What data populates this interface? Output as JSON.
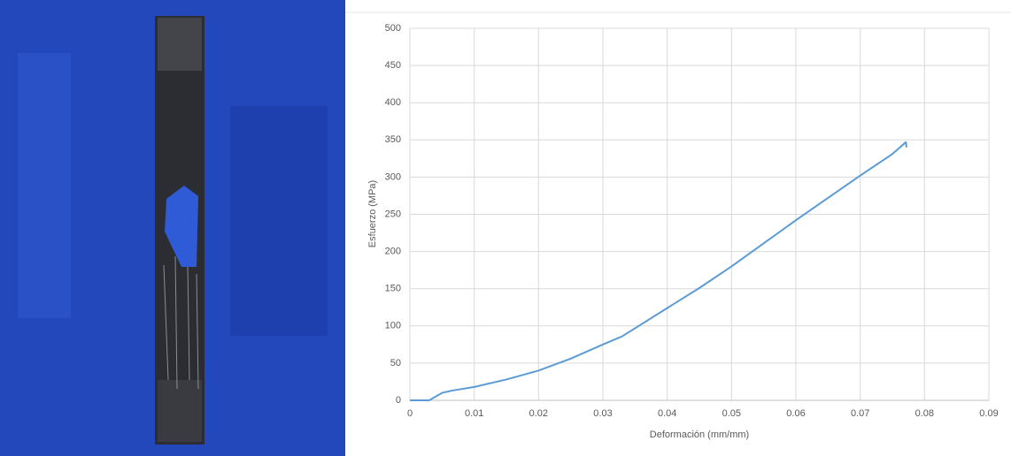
{
  "chart_data": {
    "type": "line",
    "xlabel": "Deformación (mm/mm)",
    "ylabel": "Esfuerzo (MPa)",
    "x": [
      0,
      0.003,
      0.004,
      0.005,
      0.0065,
      0.01,
      0.015,
      0.02,
      0.025,
      0.03,
      0.033,
      0.04,
      0.045,
      0.05,
      0.055,
      0.06,
      0.065,
      0.07,
      0.075,
      0.0771,
      0.0772
    ],
    "series": [
      {
        "name": "Esfuerzo",
        "color": "#5b9bd5",
        "values": [
          0,
          0,
          5,
          10,
          13,
          18,
          28,
          40,
          56,
          75,
          86,
          124,
          151,
          180,
          211,
          242,
          272,
          302,
          331,
          347,
          340
        ]
      }
    ],
    "xlim": [
      0,
      0.09
    ],
    "xticks": [
      0,
      0.01,
      0.02,
      0.03,
      0.04,
      0.05,
      0.06,
      0.07,
      0.08,
      0.09
    ],
    "ylim": [
      0,
      500
    ],
    "yticks": [
      0,
      50,
      100,
      150,
      200,
      250,
      300,
      350,
      400,
      450,
      500
    ],
    "grid": true
  }
}
